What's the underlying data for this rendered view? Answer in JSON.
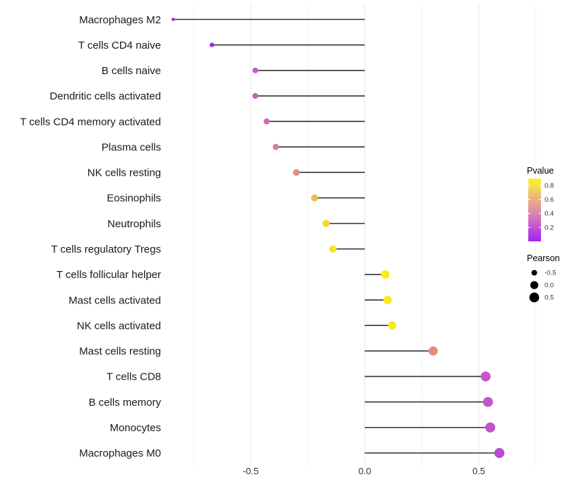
{
  "chart_data": {
    "type": "scatter",
    "variant": "lollipop",
    "title": "",
    "xlabel": "",
    "ylabel": "",
    "x_tick_labels": [
      "-0.5",
      "0.0",
      "0.5"
    ],
    "x_tick_values": [
      -0.5,
      0.0,
      0.5
    ],
    "x_minor_gridlines": [
      -0.75,
      -0.25,
      0.25,
      0.75
    ],
    "xlim": [
      -0.89,
      0.86
    ],
    "baseline_x": 0.0,
    "grid": "vertical-only",
    "stem_color": "#333333",
    "text_color": "#1a1a1a",
    "axis_text_color": "#333333",
    "major_grid_color": "#e5e5e5",
    "minor_grid_color": "#f2f2f2",
    "categories": [
      "Macrophages M2",
      "T cells CD4 naive",
      "B cells naive",
      "Dendritic cells activated",
      "T cells CD4 memory activated",
      "Plasma cells",
      "NK cells resting",
      "Eosinophils",
      "Neutrophils",
      "T cells regulatory  Tregs",
      "T cells follicular helper",
      "Mast cells activated",
      "NK cells activated",
      "Mast cells resting",
      "T cells CD8",
      "B cells memory",
      "Monocytes",
      "Macrophages M0"
    ],
    "series": [
      {
        "name": "Pearson correlation",
        "points": [
          {
            "label": "Macrophages M2",
            "pearson": -0.84,
            "color": "#8d28d8"
          },
          {
            "label": "T cells CD4 naive",
            "pearson": -0.67,
            "color": "#a42ce0"
          },
          {
            "label": "B cells naive",
            "pearson": -0.48,
            "color": "#c35dc4"
          },
          {
            "label": "Dendritic cells activated",
            "pearson": -0.48,
            "color": "#c35dc4"
          },
          {
            "label": "T cells CD4 memory activated",
            "pearson": -0.43,
            "color": "#ca6cba"
          },
          {
            "label": "Plasma cells",
            "pearson": -0.39,
            "color": "#d480a8"
          },
          {
            "label": "NK cells resting",
            "pearson": -0.3,
            "color": "#df937b"
          },
          {
            "label": "Eosinophils",
            "pearson": -0.22,
            "color": "#ecbb55"
          },
          {
            "label": "Neutrophils",
            "pearson": -0.17,
            "color": "#f3d838"
          },
          {
            "label": "T cells regulatory  Tregs",
            "pearson": -0.14,
            "color": "#f7e52c"
          },
          {
            "label": "T cells follicular helper",
            "pearson": 0.09,
            "color": "#fbec17"
          },
          {
            "label": "Mast cells activated",
            "pearson": 0.1,
            "color": "#fbea1a"
          },
          {
            "label": "NK cells activated",
            "pearson": 0.12,
            "color": "#fae91d"
          },
          {
            "label": "Mast cells resting",
            "pearson": 0.3,
            "color": "#df9078"
          },
          {
            "label": "T cells CD8",
            "pearson": 0.53,
            "color": "#c556c9"
          },
          {
            "label": "B cells memory",
            "pearson": 0.54,
            "color": "#c454cb"
          },
          {
            "label": "Monocytes",
            "pearson": 0.55,
            "color": "#c352cc"
          },
          {
            "label": "Macrophages M0",
            "pearson": 0.59,
            "color": "#ba49d3"
          }
        ]
      }
    ],
    "legend_position": "right",
    "legends": {
      "pvalue": {
        "title": "Pvalue",
        "tick_labels": [
          "0.8",
          "0.6",
          "0.4",
          "0.2"
        ],
        "tick_values": [
          0.8,
          0.6,
          0.4,
          0.2
        ],
        "bar_range": [
          0.0,
          0.9
        ],
        "gradient_bottom_to_top": [
          {
            "offset": 0.0,
            "color": "#a228f0"
          },
          {
            "offset": 0.18,
            "color": "#bb47da"
          },
          {
            "offset": 0.36,
            "color": "#d173be"
          },
          {
            "offset": 0.5,
            "color": "#de8fa4"
          },
          {
            "offset": 0.64,
            "color": "#e7ab87"
          },
          {
            "offset": 0.78,
            "color": "#efc766"
          },
          {
            "offset": 0.9,
            "color": "#f6df48"
          },
          {
            "offset": 1.0,
            "color": "#fbf22c"
          }
        ]
      },
      "pearson": {
        "title": "Pearson",
        "entries": [
          {
            "label": "-0.5",
            "value": -0.5
          },
          {
            "label": "0.0",
            "value": 0.0
          },
          {
            "label": "0.5",
            "value": 0.5
          }
        ],
        "dot_color": "#000000"
      }
    }
  }
}
